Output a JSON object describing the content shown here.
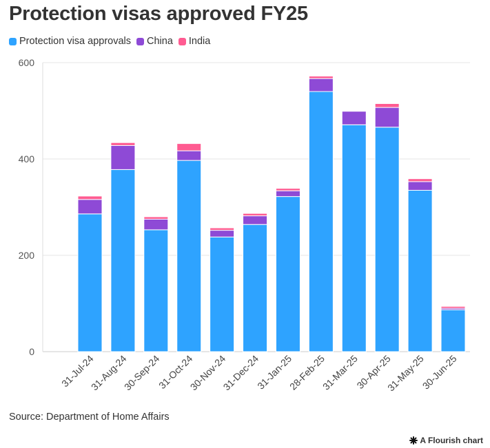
{
  "chart_data": {
    "type": "bar",
    "stacked": true,
    "title": "Protection visas approved FY25",
    "categories": [
      "31-Jul-24",
      "31-Aug-24",
      "30-Sep-24",
      "31-Oct-24",
      "30-Nov-24",
      "31-Dec-24",
      "31-Jan-25",
      "28-Feb-25",
      "31-Mar-25",
      "30-Apr-25",
      "31-May-25",
      "30-Jun-25"
    ],
    "series": [
      {
        "name": "Protection visa approvals",
        "color": "#2ea3ff",
        "values": [
          286,
          378,
          253,
          397,
          238,
          264,
          322,
          540,
          471,
          466,
          335,
          87
        ]
      },
      {
        "name": "China",
        "color": "#8e4ad6",
        "values": [
          30,
          50,
          22,
          20,
          14,
          18,
          12,
          27,
          28,
          41,
          18,
          3
        ]
      },
      {
        "name": "India",
        "color": "#ff5b91",
        "values": [
          7,
          6,
          5,
          15,
          5,
          5,
          5,
          5,
          0,
          8,
          6,
          4
        ]
      }
    ],
    "y_ticks": [
      0,
      200,
      400,
      600
    ],
    "ylim": [
      0,
      600
    ],
    "grid": true,
    "legend_position": "top-left"
  },
  "source": "Source: Department of Home Affairs",
  "credit": "A Flourish chart"
}
